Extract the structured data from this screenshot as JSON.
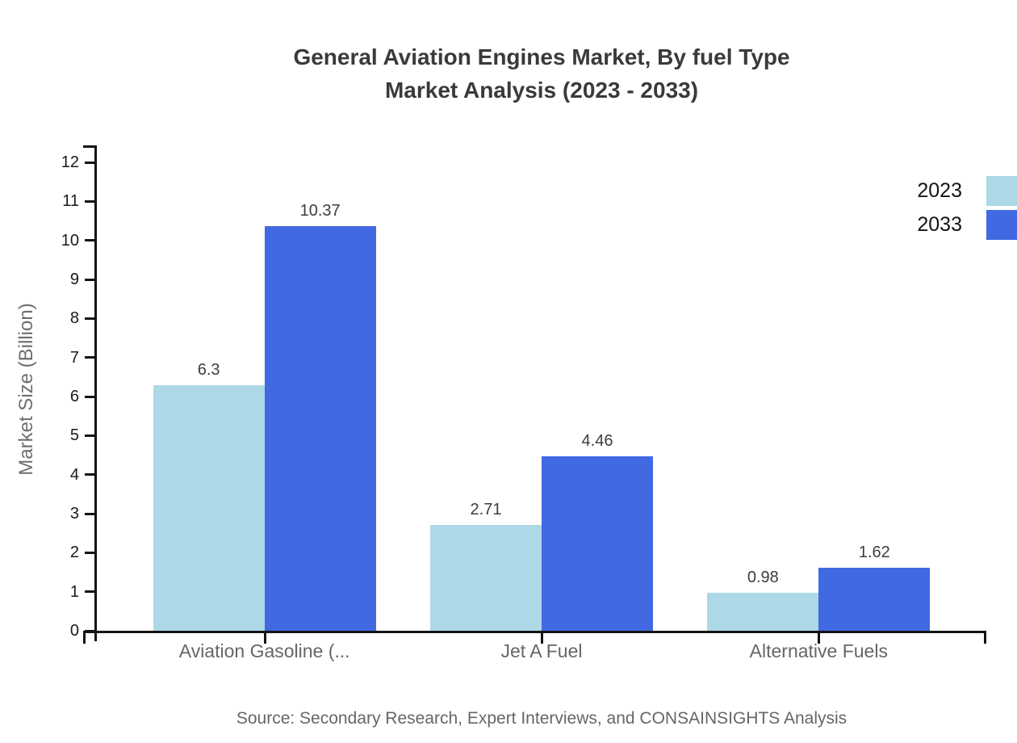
{
  "chart": {
    "title_line1": "General Aviation Engines Market, By fuel Type",
    "title_line2": "Market Analysis (2023 - 2033)",
    "source": "Source: Secondary Research, Expert Interviews, and CONSAINSIGHTS Analysis"
  },
  "chart_data": {
    "type": "bar",
    "title": "General Aviation Engines Market, By fuel Type Market Analysis (2023 - 2033)",
    "categories": [
      "Aviation Gasoline (...",
      "Jet A Fuel",
      "Alternative Fuels"
    ],
    "series": [
      {
        "name": "2023",
        "color": "#ADD8E6",
        "values": [
          6.3,
          2.71,
          0.98
        ]
      },
      {
        "name": "2033",
        "color": "#4169E1",
        "values": [
          10.37,
          4.46,
          1.62
        ]
      }
    ],
    "xlabel": "",
    "ylabel": "Market Size (Billion)",
    "ylim": [
      0,
      12
    ],
    "y_ticks": [
      0,
      1,
      2,
      3,
      4,
      5,
      6,
      7,
      8,
      9,
      10,
      11,
      12
    ],
    "grid": false,
    "legend_position": "top-right",
    "value_labels_shown": true,
    "axis_color": "#141414",
    "value_label_color": "#3d3d3d",
    "category_label_color": "#666666"
  }
}
